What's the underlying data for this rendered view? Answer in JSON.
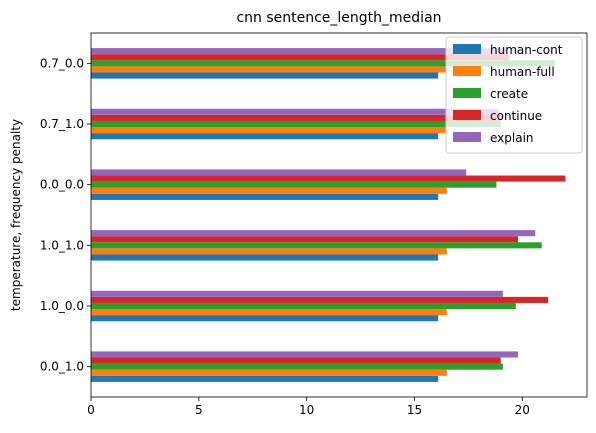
{
  "chart_data": {
    "type": "bar",
    "orientation": "horizontal",
    "title": "cnn sentence_length_median",
    "xlabel": "",
    "ylabel": "temperature, frequency penalty",
    "categories": [
      "0.0_1.0",
      "1.0_0.0",
      "1.0_1.0",
      "0.0_0.0",
      "0.7_1.0",
      "0.7_0.0"
    ],
    "xlim": [
      0,
      23
    ],
    "xticks": [
      0,
      5,
      10,
      15,
      20
    ],
    "legend_position": "upper-right",
    "grid": false,
    "series": [
      {
        "name": "human-cont",
        "color": "#1f77b4",
        "values": [
          16.1,
          16.1,
          16.1,
          16.1,
          16.1,
          16.1
        ]
      },
      {
        "name": "human-full",
        "color": "#ff7f0e",
        "values": [
          16.5,
          16.5,
          16.5,
          16.5,
          16.5,
          16.5
        ]
      },
      {
        "name": "create",
        "color": "#2ca02c",
        "values": [
          19.1,
          19.7,
          20.9,
          18.8,
          19.0,
          21.5
        ]
      },
      {
        "name": "continue",
        "color": "#d62728",
        "values": [
          19.0,
          21.2,
          19.8,
          22.0,
          19.0,
          19.4
        ]
      },
      {
        "name": "explain",
        "color": "#9467bd",
        "values": [
          19.8,
          19.1,
          20.6,
          17.4,
          18.9,
          19.3
        ]
      }
    ]
  }
}
